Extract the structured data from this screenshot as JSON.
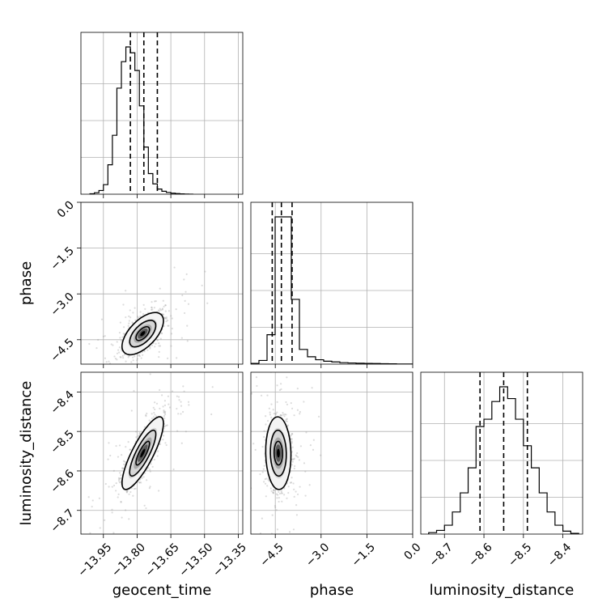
{
  "chart_data": {
    "type": "corner",
    "parameters": [
      {
        "name": "geocent_time",
        "label": "geocent_time",
        "range": [
          -14.05,
          -13.33
        ],
        "ticks": [
          -13.95,
          -13.8,
          -13.65,
          -13.5,
          -13.35
        ],
        "tick_labels": [
          "−13.95",
          "−13.80",
          "−13.65",
          "−13.50",
          "−13.35"
        ],
        "quantiles": [
          -13.83,
          -13.77,
          -13.71
        ],
        "hist": {
          "bin_edges": [
            -14.01,
            -13.99,
            -13.97,
            -13.95,
            -13.93,
            -13.91,
            -13.89,
            -13.87,
            -13.85,
            -13.83,
            -13.81,
            -13.79,
            -13.77,
            -13.75,
            -13.73,
            -13.71,
            -13.69,
            -13.67,
            -13.65,
            -13.63,
            -13.61,
            -13.59,
            -13.57,
            -13.55
          ],
          "counts": [
            0.3,
            1.0,
            2.5,
            6.5,
            20.0,
            40.0,
            72.0,
            90.0,
            100.0,
            96.0,
            84.0,
            60.0,
            32.0,
            14.0,
            7.0,
            3.5,
            2.0,
            1.2,
            0.7,
            0.4,
            0.2,
            0.1,
            0.0
          ]
        }
      },
      {
        "name": "phase",
        "label": "phase",
        "range": [
          -5.3,
          0.0
        ],
        "ticks": [
          -4.5,
          -3.0,
          -1.5,
          0.0
        ],
        "tick_labels": [
          "−4.5",
          "−3.0",
          "−1.5",
          "0.0"
        ],
        "quantiles": [
          -4.6,
          -4.3,
          -3.95
        ],
        "hist": {
          "bin_edges": [
            -5.3,
            -5.035,
            -4.77,
            -4.505,
            -4.24,
            -3.975,
            -3.71,
            -3.445,
            -3.18,
            -2.915,
            -2.65,
            -2.385,
            -2.12,
            -1.855,
            -1.59,
            -1.325,
            -1.06,
            -0.795,
            -0.53,
            -0.265,
            0.0
          ],
          "counts": [
            0.5,
            2.5,
            20.0,
            100.0,
            100.0,
            44.0,
            10.0,
            5.0,
            3.0,
            2.0,
            1.5,
            1.0,
            0.8,
            0.6,
            0.5,
            0.4,
            0.3,
            0.2,
            0.1,
            0.1
          ]
        }
      },
      {
        "name": "luminosity_distance",
        "label": "luminosity_distance",
        "range": [
          -8.76,
          -8.35
        ],
        "ticks": [
          -8.7,
          -8.6,
          -8.5,
          -8.4
        ],
        "tick_labels": [
          "−8.7",
          "−8.6",
          "−8.5",
          "−8.4"
        ],
        "quantiles": [
          -8.61,
          -8.55,
          -8.49
        ],
        "hist": {
          "bin_edges": [
            -8.74,
            -8.72,
            -8.7,
            -8.68,
            -8.66,
            -8.64,
            -8.62,
            -8.6,
            -8.58,
            -8.56,
            -8.54,
            -8.52,
            -8.5,
            -8.48,
            -8.46,
            -8.44,
            -8.42,
            -8.4,
            -8.38,
            -8.36
          ],
          "counts": [
            1.0,
            2.5,
            6.0,
            15.0,
            28.0,
            45.0,
            73.0,
            78.0,
            90.0,
            100.0,
            92.0,
            78.0,
            60.0,
            45.0,
            28.0,
            15.0,
            6.0,
            2.0,
            0.5
          ]
        }
      }
    ],
    "pairs": [
      {
        "x": "geocent_time",
        "y": "phase",
        "center": [
          -13.775,
          -4.3
        ],
        "sigma": [
          0.04,
          0.3
        ],
        "correlation": 0.6,
        "contour_levels_sigma": [
          1,
          2,
          3
        ]
      },
      {
        "x": "geocent_time",
        "y": "luminosity_distance",
        "center": [
          -13.775,
          -8.555
        ],
        "sigma": [
          0.04,
          0.04
        ],
        "correlation": 0.82,
        "contour_levels_sigma": [
          1,
          2,
          3
        ]
      },
      {
        "x": "phase",
        "y": "luminosity_distance",
        "center": [
          -4.4,
          -8.555
        ],
        "sigma": [
          0.18,
          0.04
        ],
        "correlation": -0.05,
        "contour_levels_sigma": [
          1,
          2,
          3
        ]
      }
    ],
    "grid": true
  }
}
